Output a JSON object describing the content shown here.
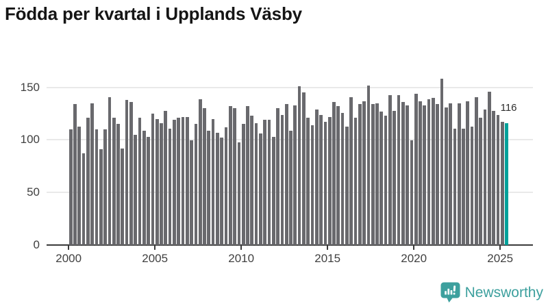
{
  "title": "Födda per kvartal i Upplands Väsby",
  "logo": {
    "text": "Newsworthy",
    "icon": "newsworthy-bubble-chart-icon"
  },
  "colors": {
    "bar": "#69696d",
    "highlight": "#00a19a",
    "grid": "#e9e9e9",
    "axis": "#3a3a3a",
    "title": "#151515",
    "tick_label": "#404040",
    "logo": "#3da09e"
  },
  "chart_data": {
    "type": "bar",
    "title": "Födda per kvartal i Upplands Väsby",
    "frequency": "quarterly",
    "x_start": "2000-Q1",
    "x_end": "2025-Q2",
    "values": [
      110,
      134,
      113,
      87,
      121,
      135,
      110,
      91,
      110,
      141,
      121,
      115,
      92,
      138,
      136,
      105,
      121,
      109,
      103,
      125,
      120,
      116,
      128,
      111,
      119,
      121,
      122,
      122,
      100,
      115,
      139,
      130,
      109,
      120,
      107,
      102,
      112,
      132,
      130,
      98,
      115,
      132,
      123,
      116,
      106,
      119,
      119,
      103,
      130,
      124,
      134,
      109,
      133,
      151,
      145,
      121,
      114,
      129,
      124,
      117,
      122,
      136,
      132,
      126,
      113,
      141,
      121,
      134,
      137,
      152,
      134,
      135,
      127,
      123,
      143,
      128,
      143,
      136,
      133,
      100,
      144,
      137,
      133,
      139,
      140,
      134,
      158,
      131,
      135,
      111,
      135,
      111,
      137,
      113,
      141,
      121,
      129,
      146,
      128,
      124,
      117,
      116
    ],
    "highlight": {
      "index": 101,
      "quarter": "2025-Q2",
      "value": 116,
      "label": "116"
    },
    "xticks": [
      2000,
      2005,
      2010,
      2015,
      2020,
      2025
    ],
    "yticks": [
      0,
      50,
      100,
      150
    ],
    "ylim": [
      0,
      160
    ],
    "grid": "horizontal",
    "legend": "none"
  }
}
